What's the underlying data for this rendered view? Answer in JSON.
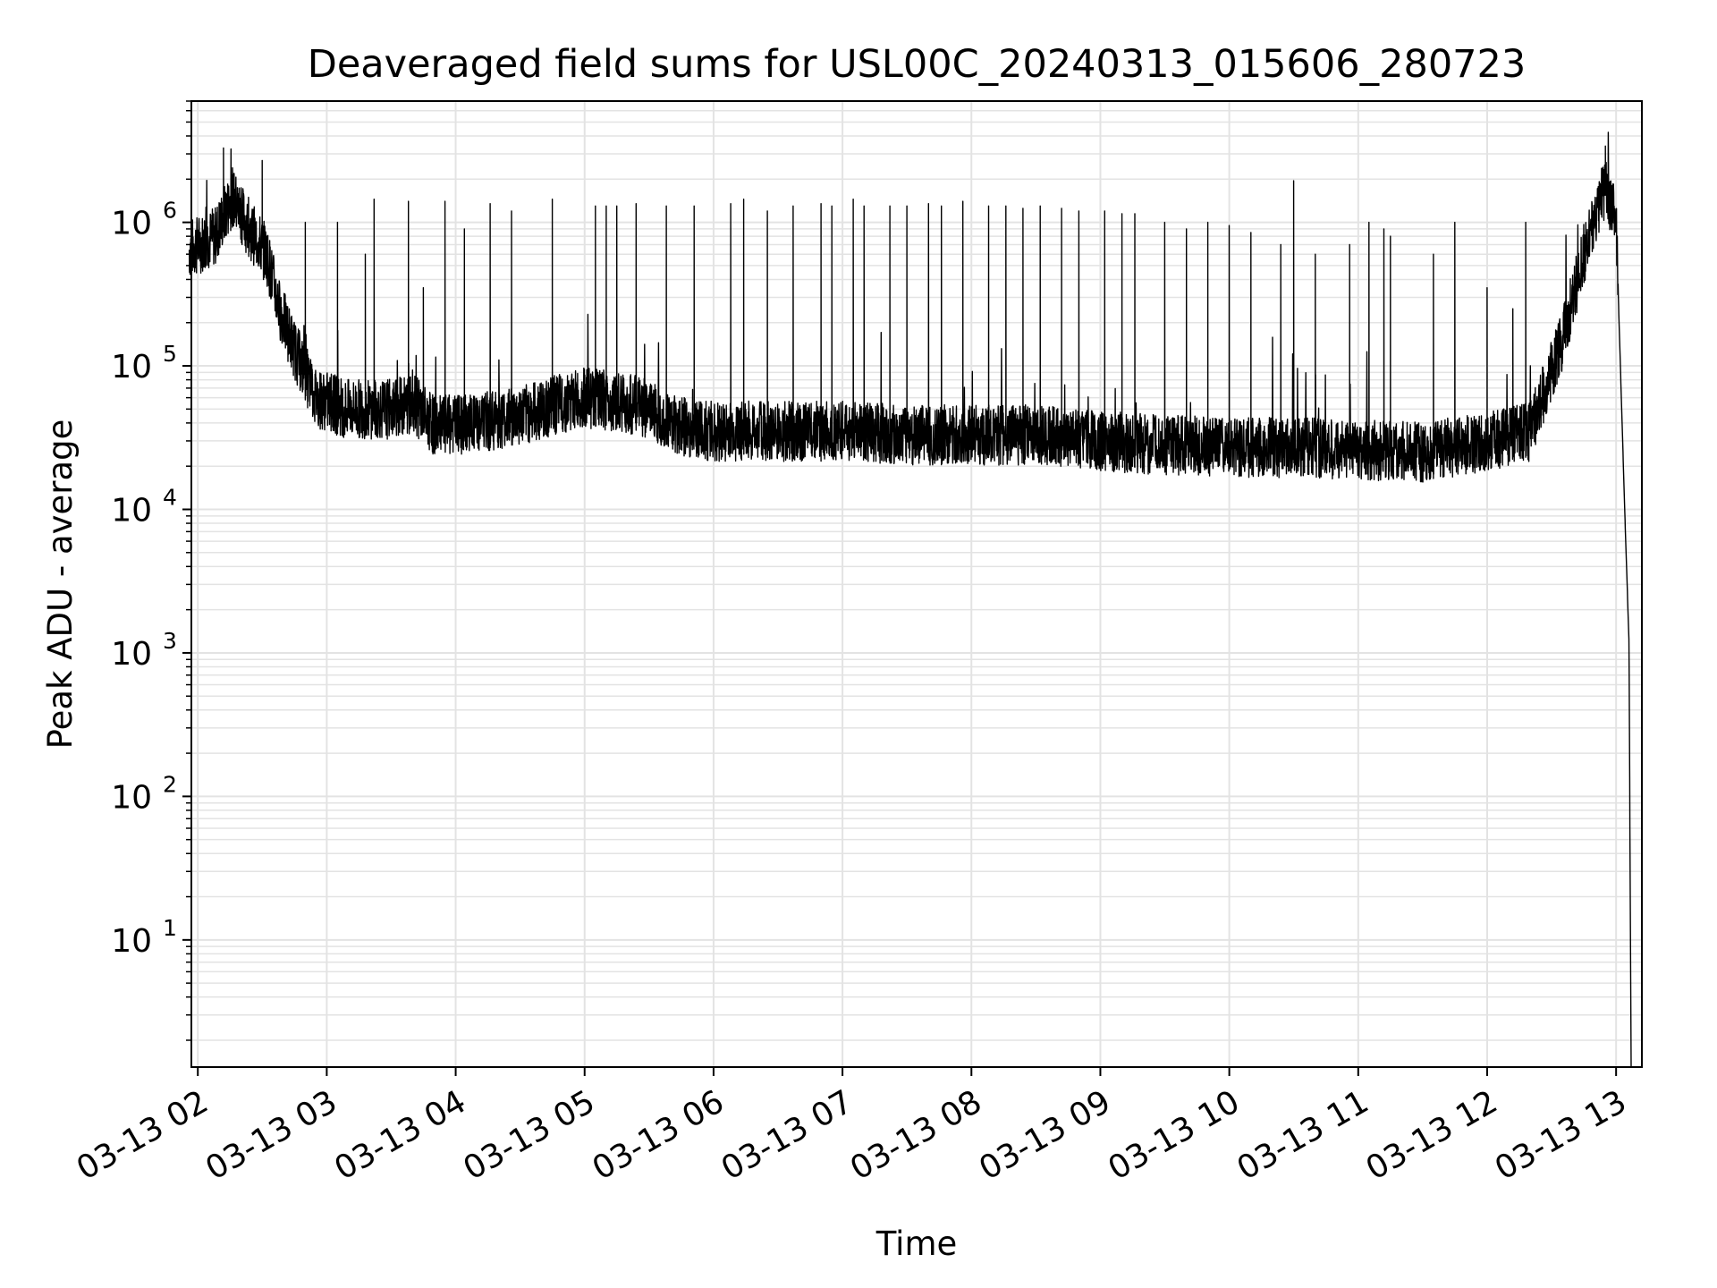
{
  "chart_data": {
    "type": "line",
    "title": "Deaveraged field sums for USL00C_20240313_015606_280723",
    "xlabel": "Time",
    "ylabel": "Peak ADU - average",
    "y_scale": "log",
    "ylim": [
      1.3,
      7000000
    ],
    "xlim": [
      "03-13 01:57",
      "03-13 13:12"
    ],
    "grid": true,
    "grid_minor": true,
    "line_color": "#000000",
    "grid_color": "#e3e3e3",
    "x_ticks": [
      "03-13 02",
      "03-13 03",
      "03-13 04",
      "03-13 05",
      "03-13 06",
      "03-13 07",
      "03-13 08",
      "03-13 09",
      "03-13 10",
      "03-13 11",
      "03-13 12",
      "03-13 13"
    ],
    "y_ticks": [
      {
        "base": "10",
        "exp": "1",
        "value": 10
      },
      {
        "base": "10",
        "exp": "2",
        "value": 100
      },
      {
        "base": "10",
        "exp": "3",
        "value": 1000
      },
      {
        "base": "10",
        "exp": "4",
        "value": 10000
      },
      {
        "base": "10",
        "exp": "5",
        "value": 100000
      },
      {
        "base": "10",
        "exp": "6",
        "value": 1000000
      }
    ],
    "series": [
      {
        "x": [
          "03-13 01:56",
          "03-13 02:08",
          "03-13 02:16",
          "03-13 02:24",
          "03-13 02:32",
          "03-13 02:38",
          "03-13 02:45",
          "03-13 02:55",
          "03-13 03:10",
          "03-13 03:30",
          "03-13 03:40",
          "03-13 03:50",
          "03-13 04:10",
          "03-13 04:30",
          "03-13 04:50",
          "03-13 05:00",
          "03-13 05:20",
          "03-13 05:30",
          "03-13 05:50",
          "03-13 06:30",
          "03-13 07:00",
          "03-13 07:30",
          "03-13 08:00",
          "03-13 08:30",
          "03-13 09:00",
          "03-13 09:30",
          "03-13 10:00",
          "03-13 10:30",
          "03-13 11:00",
          "03-13 11:30",
          "03-13 11:50",
          "03-13 12:00",
          "03-13 12:20",
          "03-13 12:35",
          "03-13 12:45",
          "03-13 12:55",
          "03-13 13:00",
          "03-13 13:04",
          "03-13 13:06",
          "03-13 13:07"
        ],
        "y": [
          650000,
          800000,
          1500000,
          900000,
          600000,
          250000,
          130000,
          60000,
          50000,
          50000,
          55000,
          38000,
          40000,
          45000,
          55000,
          60000,
          55000,
          50000,
          35000,
          35000,
          35000,
          33000,
          33000,
          33000,
          30000,
          28000,
          27000,
          27000,
          26000,
          25000,
          28000,
          30000,
          35000,
          150000,
          600000,
          1800000,
          1000000,
          10000,
          1200,
          1.3
        ],
        "spikes": [
          {
            "x": "03-13 02:12",
            "y": 3300000
          },
          {
            "x": "03-13 02:30",
            "y": 2700000
          },
          {
            "x": "03-13 02:50",
            "y": 1000000
          },
          {
            "x": "03-13 03:05",
            "y": 1000000
          },
          {
            "x": "03-13 03:18",
            "y": 600000
          },
          {
            "x": "03-13 03:22",
            "y": 1450000
          },
          {
            "x": "03-13 03:38",
            "y": 1400000
          },
          {
            "x": "03-13 03:45",
            "y": 350000
          },
          {
            "x": "03-13 03:55",
            "y": 1400000
          },
          {
            "x": "03-13 04:04",
            "y": 900000
          },
          {
            "x": "03-13 04:16",
            "y": 1350000
          },
          {
            "x": "03-13 04:26",
            "y": 1200000
          },
          {
            "x": "03-13 04:45",
            "y": 1450000
          },
          {
            "x": "03-13 05:05",
            "y": 1300000
          },
          {
            "x": "03-13 05:10",
            "y": 1300000
          },
          {
            "x": "03-13 05:15",
            "y": 1300000
          },
          {
            "x": "03-13 05:24",
            "y": 1350000
          },
          {
            "x": "03-13 05:38",
            "y": 1300000
          },
          {
            "x": "03-13 05:51",
            "y": 1300000
          },
          {
            "x": "03-13 06:08",
            "y": 1350000
          },
          {
            "x": "03-13 06:14",
            "y": 1450000
          },
          {
            "x": "03-13 06:25",
            "y": 1200000
          },
          {
            "x": "03-13 06:37",
            "y": 1300000
          },
          {
            "x": "03-13 06:50",
            "y": 1350000
          },
          {
            "x": "03-13 06:55",
            "y": 1300000
          },
          {
            "x": "03-13 07:05",
            "y": 1450000
          },
          {
            "x": "03-13 07:10",
            "y": 1300000
          },
          {
            "x": "03-13 07:22",
            "y": 1300000
          },
          {
            "x": "03-13 07:30",
            "y": 1300000
          },
          {
            "x": "03-13 07:40",
            "y": 1350000
          },
          {
            "x": "03-13 07:46",
            "y": 1300000
          },
          {
            "x": "03-13 07:56",
            "y": 1400000
          },
          {
            "x": "03-13 08:08",
            "y": 1300000
          },
          {
            "x": "03-13 08:16",
            "y": 1300000
          },
          {
            "x": "03-13 08:24",
            "y": 1250000
          },
          {
            "x": "03-13 08:32",
            "y": 1300000
          },
          {
            "x": "03-13 08:42",
            "y": 1250000
          },
          {
            "x": "03-13 08:50",
            "y": 1200000
          },
          {
            "x": "03-13 09:02",
            "y": 1200000
          },
          {
            "x": "03-13 09:10",
            "y": 1150000
          },
          {
            "x": "03-13 09:16",
            "y": 1150000
          },
          {
            "x": "03-13 09:30",
            "y": 1000000
          },
          {
            "x": "03-13 09:40",
            "y": 900000
          },
          {
            "x": "03-13 09:50",
            "y": 1000000
          },
          {
            "x": "03-13 10:00",
            "y": 950000
          },
          {
            "x": "03-13 10:10",
            "y": 850000
          },
          {
            "x": "03-13 10:24",
            "y": 700000
          },
          {
            "x": "03-13 10:30",
            "y": 1950000
          },
          {
            "x": "03-13 10:40",
            "y": 600000
          },
          {
            "x": "03-13 10:56",
            "y": 700000
          },
          {
            "x": "03-13 11:05",
            "y": 1000000
          },
          {
            "x": "03-13 11:12",
            "y": 900000
          },
          {
            "x": "03-13 11:15",
            "y": 800000
          },
          {
            "x": "03-13 11:35",
            "y": 600000
          },
          {
            "x": "03-13 11:45",
            "y": 1000000
          },
          {
            "x": "03-13 12:00",
            "y": 350000
          },
          {
            "x": "03-13 12:12",
            "y": 250000
          },
          {
            "x": "03-13 12:18",
            "y": 1000000
          },
          {
            "x": "03-13 12:55",
            "y": 3400000
          }
        ]
      }
    ]
  }
}
